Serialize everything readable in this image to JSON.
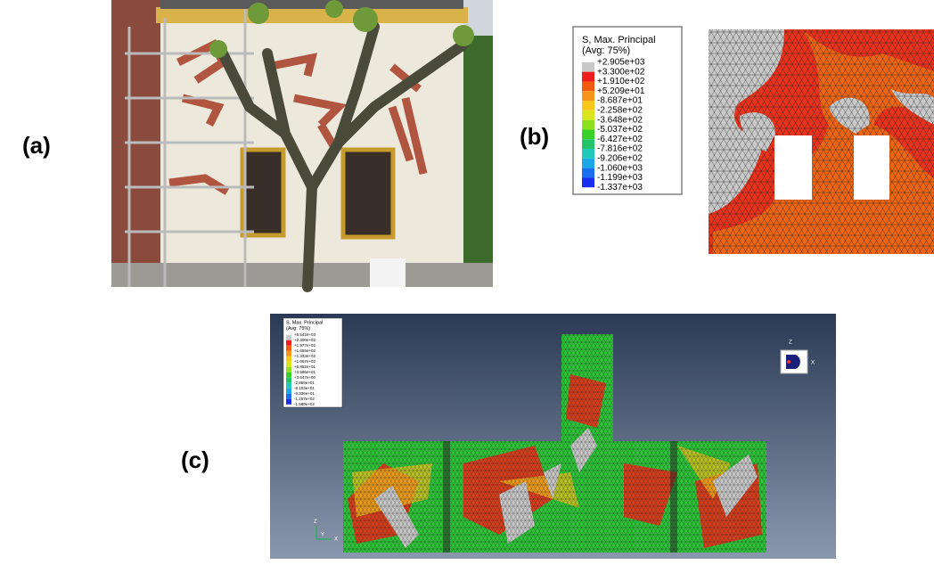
{
  "panels": [
    {
      "label": "(a)"
    },
    {
      "label": "(b)",
      "legend": {
        "title": "S, Max. Principal",
        "subtitle": "(Avg: 75%)",
        "values": [
          "+2.905e+03",
          "+3.300e+02",
          "+1.910e+02",
          "+5.209e+01",
          "-8.687e+01",
          "-2.258e+02",
          "-3.648e+02",
          "-5.037e+02",
          "-6.427e+02",
          "-7.816e+02",
          "-9.206e+02",
          "-1.060e+03",
          "-1.199e+03",
          "-1.337e+03"
        ]
      }
    },
    {
      "label": "(c)",
      "legend": {
        "title": "S, Max. Principal",
        "subtitle": "(Avg: 75%)",
        "values": [
          "+6.542e+03",
          "+2.300e+02",
          "+1.977e+02",
          "+1.655e+02",
          "+1.333e+02",
          "+1.007e+02",
          "+6.852e+01",
          "+3.596e+01",
          "+3.647e+00",
          "-2.869e+01",
          "-6.103e+01",
          "-9.336e+01",
          "-1.257e+02",
          "-1.580e+02"
        ]
      },
      "triad": {
        "z": "Z",
        "x": "X",
        "y": "Y"
      }
    }
  ]
}
